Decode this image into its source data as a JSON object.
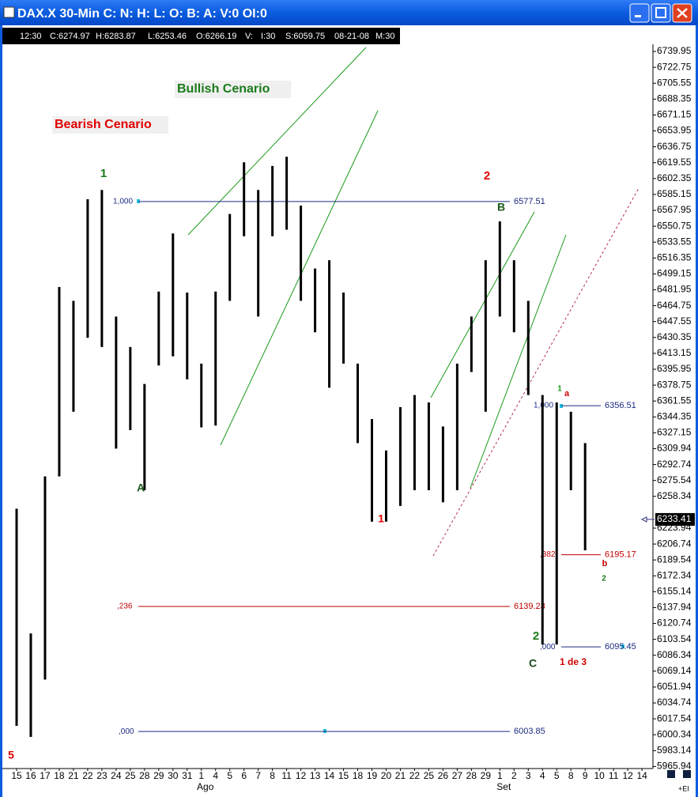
{
  "window": {
    "title": "DAX.X 30-Min C: N: H: L: O: B: A: V:0 OI:0",
    "info": [
      "12:30",
      "C:6274.97",
      "H:6283.87",
      "L:6253.46",
      "O:6266.19",
      "V:",
      "I:30",
      "S:6059.75",
      "08-21-08",
      "M:30"
    ],
    "corner": "+EI"
  },
  "chart_data": {
    "type": "ohlc",
    "color": "#000000",
    "categories": [
      "15",
      "16",
      "17",
      "18",
      "21",
      "22",
      "23",
      "24",
      "25",
      "28",
      "29",
      "30",
      "31",
      "1",
      "4",
      "5",
      "6",
      "7",
      "8",
      "11",
      "12",
      "13",
      "14",
      "15",
      "18",
      "19",
      "20",
      "21",
      "22",
      "25",
      "26",
      "27",
      "28",
      "29",
      "1",
      "2",
      "3",
      "4",
      "5",
      "8",
      "9",
      "10",
      "11",
      "12",
      "14"
    ],
    "months": [
      {
        "label": "Ago",
        "index": 13
      },
      {
        "label": "Set",
        "index": 34
      }
    ],
    "highs": [
      6245,
      6110,
      6280,
      6485,
      6470,
      6580,
      6590,
      6453,
      6420,
      6380,
      6480,
      6543,
      6479,
      6402,
      6480,
      6564,
      6620,
      6590,
      6616,
      6626,
      6573,
      6505,
      6514,
      6479,
      6402,
      6342,
      6308,
      6355,
      6368,
      6360,
      6334,
      6402,
      6453,
      6514,
      6556,
      6514,
      6470,
      6368,
      6360,
      6350,
      6316,
      null,
      null,
      null,
      null
    ],
    "lows": [
      6010,
      5998,
      6060,
      6280,
      6350,
      6430,
      6420,
      6310,
      6330,
      6265,
      6400,
      6410,
      6385,
      6333,
      6335,
      6470,
      6540,
      6453,
      6540,
      6547,
      6470,
      6436,
      6376,
      6402,
      6316,
      6231,
      6231,
      6248,
      6265,
      6265,
      6252,
      6265,
      6393,
      6350,
      6453,
      6436,
      6368,
      6098,
      6098,
      6265,
      6200,
      null,
      null,
      null,
      null
    ],
    "ylim": [
      5964.6,
      6746.0
    ],
    "yticks": [
      6739.95,
      6722.75,
      6705.55,
      6688.35,
      6671.15,
      6653.95,
      6636.75,
      6619.55,
      6602.35,
      6585.15,
      6567.95,
      6550.75,
      6533.55,
      6516.35,
      6499.15,
      6481.95,
      6464.75,
      6447.55,
      6430.35,
      6413.15,
      6395.95,
      6378.75,
      6361.55,
      6344.35,
      6327.15,
      6309.94,
      6292.74,
      6275.54,
      6258.34,
      6223.94,
      6206.74,
      6189.54,
      6172.34,
      6155.14,
      6137.94,
      6120.74,
      6103.54,
      6086.34,
      6069.14,
      6051.94,
      6034.74,
      6017.54,
      6000.34,
      5983.14,
      5965.94
    ],
    "last_price": 6233.41,
    "levels": [
      {
        "value": 6577.51,
        "ratio": "1,000",
        "color": "#1a2a80"
      },
      {
        "value": 6139.23,
        "ratio": ",236",
        "color": "#c00000"
      },
      {
        "value": 6003.85,
        "ratio": ",000",
        "color": "#1a2a80"
      },
      {
        "value": 6356.51,
        "ratio": "1,000",
        "color": "#1a2a80"
      },
      {
        "value": 6195.17,
        "ratio": ",382",
        "color": "#c00000"
      },
      {
        "value": 6095.45,
        "ratio": ",000",
        "color": "#1a2a80"
      }
    ],
    "annotations": [
      {
        "text": "Bullish Cenario",
        "color": "#1a7a1a"
      },
      {
        "text": "Bearish Cenario",
        "color": "#e00000"
      },
      {
        "text": "1",
        "color": "#1a7a1a"
      },
      {
        "text": "A",
        "color": "#1a5a1a"
      },
      {
        "text": "2",
        "color": "#e00000"
      },
      {
        "text": "B",
        "color": "#1a5a1a"
      },
      {
        "text": "1",
        "color": "#e00000"
      },
      {
        "text": "1",
        "color": "#1a9a1a"
      },
      {
        "text": "a",
        "color": "#d00000"
      },
      {
        "text": "b",
        "color": "#c00000"
      },
      {
        "text": "2",
        "color": "#1a7a1a"
      },
      {
        "text": "2",
        "color": "#1a7a1a"
      },
      {
        "text": "C",
        "color": "#1a4a1a"
      },
      {
        "text": "1 de 3",
        "color": "#d00000"
      },
      {
        "text": "5",
        "color": "#e00000"
      }
    ]
  }
}
